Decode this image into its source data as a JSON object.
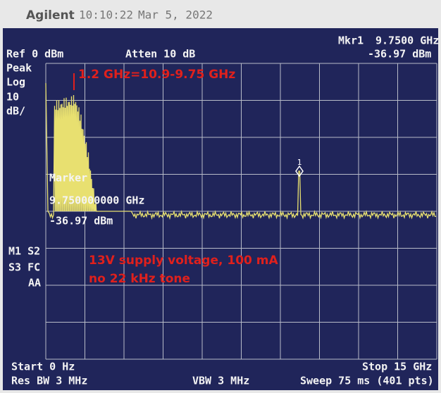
{
  "header": {
    "brand": "Agilent",
    "time": "10:10:22",
    "date": "Mar 5, 2022"
  },
  "marker_readout": {
    "label": "Mkr1",
    "frequency": "9.7500 GHz",
    "level": "-36.97 dBm"
  },
  "settings": {
    "ref": "Ref 0 dBm",
    "atten": "Atten 10 dB",
    "detector": "Peak",
    "scale": "Log",
    "scale_value": "10",
    "scale_unit": "dB/"
  },
  "status": {
    "line1": "M1 S2",
    "line2": "S3 FC",
    "line3": "AA"
  },
  "marker_box": {
    "title": "Marker",
    "frequency": "9.750000000 GHz",
    "level": "-36.97 dBm"
  },
  "marker_label": "1",
  "annotations": {
    "if_note": "1.2 GHz=10.9-9.75 GHz",
    "supply": "13V supply voltage, 100 mA",
    "tone": "no 22 kHz tone"
  },
  "footer": {
    "start": "Start 0 Hz",
    "stop": "Stop 15 GHz",
    "rbw": "Res BW 3 MHz",
    "vbw": "VBW 3 MHz",
    "sweep": "Sweep 75 ms (401 pts)"
  }
}
